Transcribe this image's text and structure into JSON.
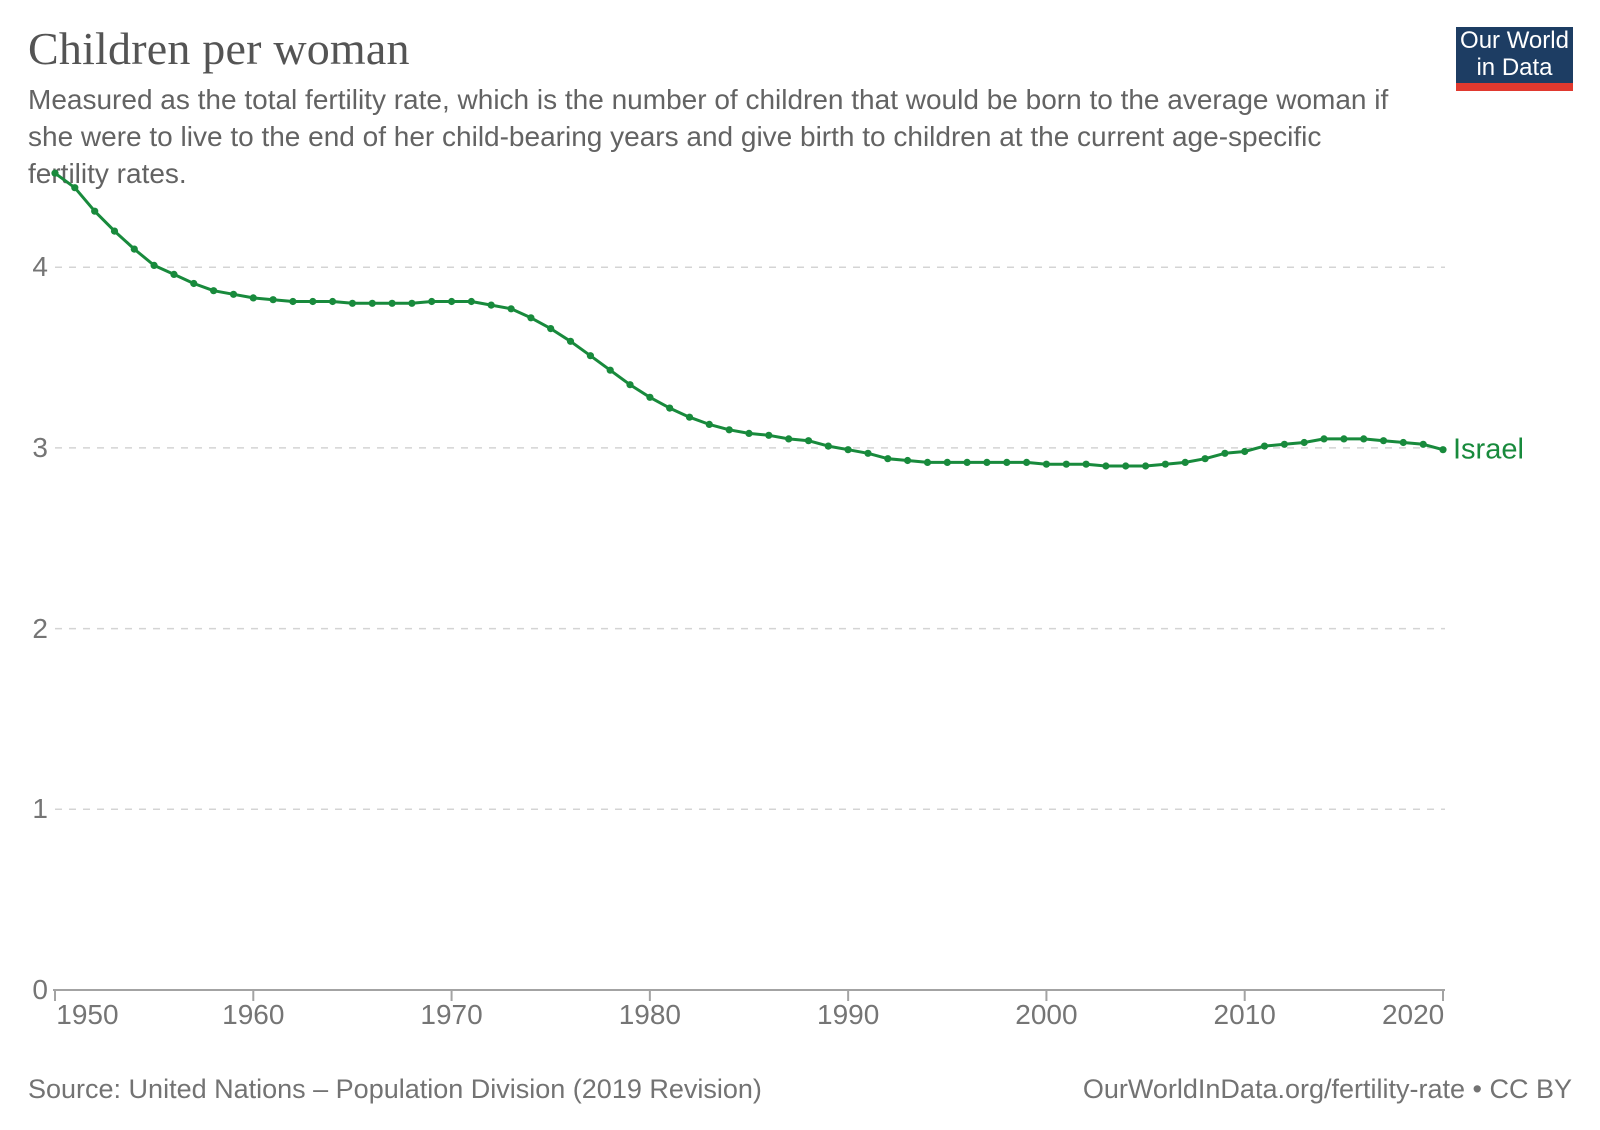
{
  "header": {
    "title": "Children per woman",
    "subtitle": "Measured as the total fertility rate, which is the number of children that would be born to the average woman if she were to live to the end of her child-bearing years and give birth to children at the current age-specific fertility rates.",
    "logo_line1": "Our World",
    "logo_line2": "in Data",
    "logo_bg_color": "#1d3d63",
    "logo_accent_color": "#e0392f"
  },
  "footer": {
    "source": "Source: United Nations – Population Division (2019 Revision)",
    "license": "OurWorldInData.org/fertility-rate • CC BY"
  },
  "chart_data": {
    "type": "line",
    "title": "Children per woman",
    "xlabel": "",
    "ylabel": "",
    "xlim": [
      1950,
      2020
    ],
    "ylim": [
      0,
      4.6
    ],
    "xticks": [
      1950,
      1960,
      1970,
      1980,
      1990,
      2000,
      2010,
      2020
    ],
    "yticks": [
      0,
      1,
      2,
      3,
      4
    ],
    "grid": "horizontal-dashed",
    "legend_position": "end-of-line-label",
    "line_color": "#188a3c",
    "gridline_color": "#d4d4d4",
    "axis_color": "#a3a3a3",
    "tick_label_color": "#757575",
    "series": [
      {
        "name": "Israel",
        "color": "#188a3c",
        "points": [
          [
            1950,
            4.52
          ],
          [
            1951,
            4.44
          ],
          [
            1952,
            4.31
          ],
          [
            1953,
            4.2
          ],
          [
            1954,
            4.1
          ],
          [
            1955,
            4.01
          ],
          [
            1956,
            3.96
          ],
          [
            1957,
            3.91
          ],
          [
            1958,
            3.87
          ],
          [
            1959,
            3.85
          ],
          [
            1960,
            3.83
          ],
          [
            1961,
            3.82
          ],
          [
            1962,
            3.81
          ],
          [
            1963,
            3.81
          ],
          [
            1964,
            3.81
          ],
          [
            1965,
            3.8
          ],
          [
            1966,
            3.8
          ],
          [
            1967,
            3.8
          ],
          [
            1968,
            3.8
          ],
          [
            1969,
            3.81
          ],
          [
            1970,
            3.81
          ],
          [
            1971,
            3.81
          ],
          [
            1972,
            3.79
          ],
          [
            1973,
            3.77
          ],
          [
            1974,
            3.72
          ],
          [
            1975,
            3.66
          ],
          [
            1976,
            3.59
          ],
          [
            1977,
            3.51
          ],
          [
            1978,
            3.43
          ],
          [
            1979,
            3.35
          ],
          [
            1980,
            3.28
          ],
          [
            1981,
            3.22
          ],
          [
            1982,
            3.17
          ],
          [
            1983,
            3.13
          ],
          [
            1984,
            3.1
          ],
          [
            1985,
            3.08
          ],
          [
            1986,
            3.07
          ],
          [
            1987,
            3.05
          ],
          [
            1988,
            3.04
          ],
          [
            1989,
            3.01
          ],
          [
            1990,
            2.99
          ],
          [
            1991,
            2.97
          ],
          [
            1992,
            2.94
          ],
          [
            1993,
            2.93
          ],
          [
            1994,
            2.92
          ],
          [
            1995,
            2.92
          ],
          [
            1996,
            2.92
          ],
          [
            1997,
            2.92
          ],
          [
            1998,
            2.92
          ],
          [
            1999,
            2.92
          ],
          [
            2000,
            2.91
          ],
          [
            2001,
            2.91
          ],
          [
            2002,
            2.91
          ],
          [
            2003,
            2.9
          ],
          [
            2004,
            2.9
          ],
          [
            2005,
            2.9
          ],
          [
            2006,
            2.91
          ],
          [
            2007,
            2.92
          ],
          [
            2008,
            2.94
          ],
          [
            2009,
            2.97
          ],
          [
            2010,
            2.98
          ],
          [
            2011,
            3.01
          ],
          [
            2012,
            3.02
          ],
          [
            2013,
            3.03
          ],
          [
            2014,
            3.05
          ],
          [
            2015,
            3.05
          ],
          [
            2016,
            3.05
          ],
          [
            2017,
            3.04
          ],
          [
            2018,
            3.03
          ],
          [
            2019,
            3.02
          ],
          [
            2020,
            2.99
          ]
        ]
      }
    ]
  }
}
